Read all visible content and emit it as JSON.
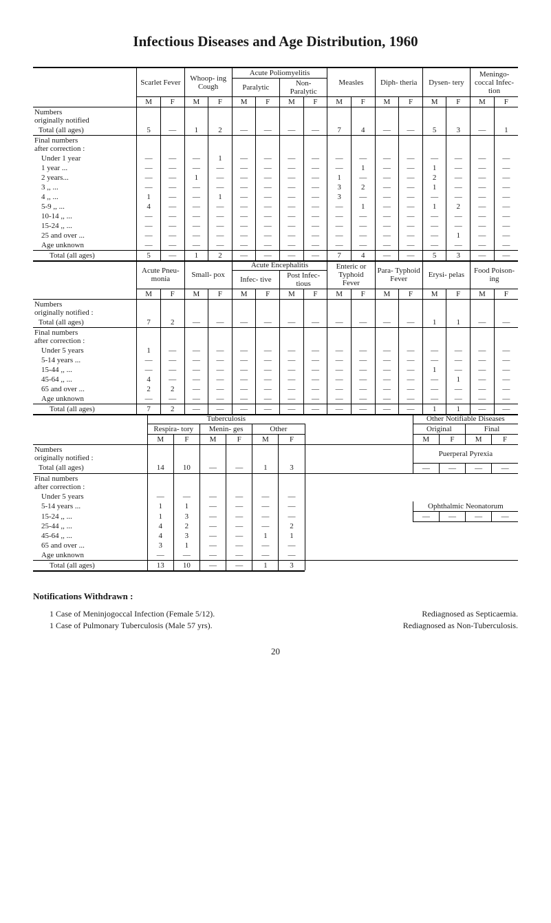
{
  "title": "Infectious Diseases and Age Distribution, 1960",
  "mf": {
    "m": "M",
    "f": "F"
  },
  "dash": "—",
  "table1": {
    "poliom_group": "Acute Poliomyelitis",
    "cols": {
      "scarlet": "Scarlet Fever",
      "whoop": "Whoop-\ning Cough",
      "polio_par": "Paralytic",
      "polio_non": "Non-\nParalytic",
      "measles": "Measles",
      "diph": "Diph-\ntheria",
      "dysen": "Dysen-\ntery",
      "mening": "Meningo-\ncoccal Infec-\ntion"
    },
    "rows": {
      "orig_head": "Numbers\noriginally notified",
      "orig_total": "Total (all ages)",
      "orig_vals": {
        "scarlet_m": "5",
        "whoop_m": "1",
        "whoop_f": "2",
        "measles_m": "7",
        "measles_f": "4",
        "dysen_m": "5",
        "dysen_f": "3",
        "mening_f": "1"
      },
      "final_head": "Final numbers\nafter correction :",
      "u1": {
        "label": "Under 1 year",
        "whoop_f": "1"
      },
      "y1": {
        "label": "1    year  ...",
        "measles_f": "1",
        "dysen_m": "1"
      },
      "y2": {
        "label": "2    years...",
        "whoop_m": "1",
        "measles_m": "1",
        "dysen_m": "2"
      },
      "y3": {
        "label": "3     ,,    ...",
        "measles_m": "3",
        "measles_f": "2",
        "dysen_m": "1"
      },
      "y4": {
        "label": "4     ,,    ...",
        "scarlet_m": "1",
        "whoop_f": "1",
        "measles_m": "3"
      },
      "y59": {
        "label": "5-9   ,,    ...",
        "scarlet_m": "4",
        "measles_f": "1",
        "dysen_m": "1",
        "dysen_f": "2"
      },
      "y1014": {
        "label": "10-14 ,,   ..."
      },
      "y1524": {
        "label": "15-24 ,,   ..."
      },
      "y25": {
        "label": "25 and over ...",
        "dysen_f": "1"
      },
      "unk": {
        "label": "Age unknown"
      },
      "final_total": {
        "label": "Total (all ages)",
        "scarlet_m": "5",
        "whoop_m": "1",
        "whoop_f": "2",
        "measles_m": "7",
        "measles_f": "4",
        "dysen_m": "5",
        "dysen_f": "3"
      }
    }
  },
  "table2": {
    "enceph_group": "Acute Encephalitis",
    "cols": {
      "pneu": "Acute Pneu-\nmonia",
      "spox": "Small-\npox",
      "enc_inf": "Infec-\ntive",
      "enc_post": "Post Infec-\ntious",
      "enteric": "Enteric or Typhoid Fever",
      "paraty": "Para-\nTyphoid Fever",
      "erysi": "Erysi-\npelas",
      "food": "Food Poison-\ning"
    },
    "rows": {
      "orig_head": "Numbers\noriginally notified :",
      "orig_total": "Total (all ages)",
      "orig_vals": {
        "pneu_m": "7",
        "pneu_f": "2",
        "erysi_m": "1",
        "erysi_f": "1"
      },
      "final_head": "Final numbers\nafter correction :",
      "u5": {
        "label": "Under 5 years",
        "pneu_m": "1"
      },
      "y514": {
        "label": "5-14 years ..."
      },
      "y1544": {
        "label": "15-44  ,,   ...",
        "erysi_m": "1"
      },
      "y4564": {
        "label": "45-64  ,,   ...",
        "pneu_m": "4",
        "erysi_f": "1"
      },
      "y65": {
        "label": "65 and over ...",
        "pneu_m": "2",
        "pneu_f": "2"
      },
      "unk": {
        "label": "Age unknown"
      },
      "final_total": {
        "label": "Total (all ages)",
        "pneu_m": "7",
        "pneu_f": "2",
        "erysi_m": "1",
        "erysi_f": "1"
      }
    }
  },
  "table3": {
    "tb_group": "Tuberculosis",
    "other_notif": "Other Notifiable Diseases",
    "cols": {
      "resp": "Respira-\ntory",
      "menin": "Menin-\nges",
      "other": "Other",
      "orig": "Original",
      "final": "Final"
    },
    "rows": {
      "orig_head": "Numbers\noriginally notified :",
      "orig_total": "Total (all ages)",
      "orig_vals": {
        "resp_m": "14",
        "resp_f": "10",
        "other_m": "1",
        "other_f": "3"
      },
      "puerp": "Puerperal Pyrexia",
      "final_head": "Final numbers\nafter correction :",
      "u5": {
        "label": "Under 5 years"
      },
      "y514": {
        "label": "5-14 years ...",
        "resp_m": "1",
        "resp_f": "1"
      },
      "y1524": {
        "label": "15-24  ,,   ...",
        "resp_m": "1",
        "resp_f": "3"
      },
      "y2544": {
        "label": "25-44  ,,   ...",
        "resp_m": "4",
        "resp_f": "2",
        "other_f": "2"
      },
      "y4564": {
        "label": "45-64  ,,   ...",
        "resp_m": "4",
        "resp_f": "3",
        "other_m": "1",
        "other_f": "1"
      },
      "y65": {
        "label": "65 and over ...",
        "resp_m": "3",
        "resp_f": "1"
      },
      "unk": {
        "label": "Age unknown"
      },
      "ophth": "Ophthalmic Neonatorum",
      "final_total": {
        "label": "Total (all ages)",
        "resp_m": "13",
        "resp_f": "10",
        "other_m": "1",
        "other_f": "3"
      }
    }
  },
  "notif": {
    "head": "Notifications Withdrawn :",
    "l1a": "1 Case of Meninjogoccal Infection (Female 5/12).",
    "l1b": "Rediagnosed as Septicaemia.",
    "l2a": "1 Case of Pulmonary Tuberculosis (Male 57 yrs).",
    "l2b": "Rediagnosed as Non-Tuberculosis."
  },
  "pagenum": "20"
}
